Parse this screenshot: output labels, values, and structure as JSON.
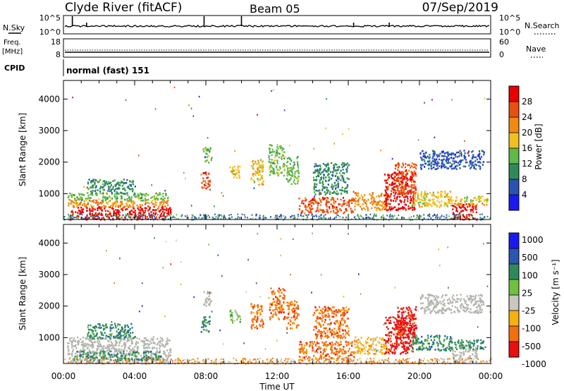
{
  "header": {
    "station": "Clyde River (fitACF)",
    "beam": "Beam 05",
    "date": "07/Sep/2019"
  },
  "panels": {
    "nsky": {
      "left_label": "N.Sky",
      "right_label": "N.Search",
      "left_ticks": [
        "10^5",
        "10^0"
      ],
      "right_ticks": [
        "10^5",
        "10^0"
      ]
    },
    "freq": {
      "left_label_1": "Freq.",
      "left_label_2": "[MHz]",
      "right_label": "Nave",
      "left_ticks": [
        "18",
        "8"
      ],
      "right_ticks": [
        "60",
        "0"
      ]
    },
    "cpid": {
      "label": "CPID",
      "text": "normal (fast) 151"
    }
  },
  "colors": {
    "power": [
      "#1a1af0",
      "#2a52b0",
      "#2f8a5a",
      "#60b848",
      "#f0c020",
      "#f08a10",
      "#e85010",
      "#e80000"
    ],
    "velocity": [
      "#e81010",
      "#f07010",
      "#f8b010",
      "#c8c8c0",
      "#70c040",
      "#2e8a5a",
      "#2a56b0",
      "#1a1af0"
    ],
    "ground": "#b4b4ae"
  },
  "chart_data": [
    {
      "type": "heatmap",
      "name": "power",
      "ylabel": "Slant Range [km]",
      "xlabel": "Time UT",
      "x_ticks": [
        "00:00",
        "04:00",
        "08:00",
        "12:00",
        "16:00",
        "20:00",
        "00:00"
      ],
      "y_ticks": [
        "1000",
        "2000",
        "3000",
        "4000"
      ],
      "xlim": [
        0,
        24
      ],
      "ylim": [
        180,
        4590
      ],
      "colorbar_label": "Power [dB]",
      "colorbar_ticks": [
        "4",
        "8",
        "12",
        "16",
        "20",
        "24",
        "28"
      ],
      "colorbar_range": [
        0,
        32
      ],
      "blobs": [
        {
          "t0": 0.3,
          "t1": 6.0,
          "r0": 200,
          "r1": 620,
          "c": 7
        },
        {
          "t0": 0.2,
          "t1": 6.0,
          "r0": 600,
          "r1": 820,
          "c": 5
        },
        {
          "t0": 0.2,
          "t1": 5.9,
          "r0": 800,
          "r1": 1050,
          "c": 3
        },
        {
          "t0": 1.3,
          "t1": 4.0,
          "r0": 1000,
          "r1": 1480,
          "c": 2
        },
        {
          "t0": 7.7,
          "t1": 8.2,
          "r0": 1150,
          "r1": 1700,
          "c": 6
        },
        {
          "t0": 7.8,
          "t1": 8.3,
          "r0": 2000,
          "r1": 2500,
          "c": 3
        },
        {
          "t0": 9.3,
          "t1": 9.9,
          "r0": 1500,
          "r1": 1900,
          "c": 4
        },
        {
          "t0": 10.5,
          "t1": 11.2,
          "r0": 1300,
          "r1": 2100,
          "c": 4
        },
        {
          "t0": 11.5,
          "t1": 12.4,
          "r0": 1600,
          "r1": 2600,
          "c": 3
        },
        {
          "t0": 12.5,
          "t1": 13.2,
          "r0": 1300,
          "r1": 2200,
          "c": 3
        },
        {
          "t0": 13.2,
          "t1": 16.3,
          "r0": 400,
          "r1": 900,
          "c": 6
        },
        {
          "t0": 14.0,
          "t1": 16.0,
          "r0": 1000,
          "r1": 2000,
          "c": 2
        },
        {
          "t0": 16.3,
          "t1": 18.2,
          "r0": 500,
          "r1": 1050,
          "c": 5
        },
        {
          "t0": 18.0,
          "t1": 19.7,
          "r0": 500,
          "r1": 1700,
          "c": 7
        },
        {
          "t0": 18.6,
          "t1": 19.8,
          "r0": 1000,
          "r1": 2000,
          "c": 6
        },
        {
          "t0": 19.5,
          "t1": 21.8,
          "r0": 600,
          "r1": 1100,
          "c": 4
        },
        {
          "t0": 20.0,
          "t1": 23.6,
          "r0": 1800,
          "r1": 2400,
          "c": 1
        },
        {
          "t0": 21.8,
          "t1": 23.2,
          "r0": 200,
          "r1": 700,
          "c": 7
        },
        {
          "t0": 21.6,
          "t1": 23.8,
          "r0": 650,
          "r1": 950,
          "c": 4
        }
      ]
    },
    {
      "type": "heatmap",
      "name": "velocity",
      "ylabel": "Slant Range [km]",
      "xlabel": "Time UT",
      "x_ticks": [
        "00:00",
        "04:00",
        "08:00",
        "12:00",
        "16:00",
        "20:00",
        "00:00"
      ],
      "y_ticks": [
        "1000",
        "2000",
        "3000",
        "4000"
      ],
      "xlim": [
        0,
        24
      ],
      "ylim": [
        180,
        4590
      ],
      "colorbar_label": "Velocity [m s⁻¹]",
      "colorbar_ticks": [
        "-1000",
        "-500",
        "-100",
        "-25",
        "25",
        "100",
        "500",
        "1000"
      ],
      "blobs": [
        {
          "t0": 0.2,
          "t1": 6.0,
          "r0": 200,
          "r1": 1050,
          "c": "g"
        },
        {
          "t0": 0.5,
          "t1": 5.5,
          "r0": 300,
          "r1": 600,
          "c": 5
        },
        {
          "t0": 1.3,
          "t1": 4.0,
          "r0": 1000,
          "r1": 1480,
          "c": 5
        },
        {
          "t0": 7.7,
          "t1": 8.2,
          "r0": 1150,
          "r1": 1700,
          "c": 5
        },
        {
          "t0": 7.8,
          "t1": 8.3,
          "r0": 2000,
          "r1": 2500,
          "c": "g"
        },
        {
          "t0": 9.3,
          "t1": 9.9,
          "r0": 1500,
          "r1": 1900,
          "c": 4
        },
        {
          "t0": 10.5,
          "t1": 11.2,
          "r0": 1300,
          "r1": 2100,
          "c": 1
        },
        {
          "t0": 11.5,
          "t1": 12.4,
          "r0": 1600,
          "r1": 2600,
          "c": 1
        },
        {
          "t0": 12.5,
          "t1": 13.2,
          "r0": 1300,
          "r1": 2200,
          "c": 1
        },
        {
          "t0": 13.2,
          "t1": 16.3,
          "r0": 300,
          "r1": 900,
          "c": 1
        },
        {
          "t0": 14.0,
          "t1": 16.0,
          "r0": 1000,
          "r1": 2000,
          "c": 1
        },
        {
          "t0": 16.3,
          "t1": 18.2,
          "r0": 500,
          "r1": 1050,
          "c": 2
        },
        {
          "t0": 18.0,
          "t1": 19.7,
          "r0": 500,
          "r1": 1700,
          "c": 0
        },
        {
          "t0": 18.6,
          "t1": 19.8,
          "r0": 1000,
          "r1": 2000,
          "c": 0
        },
        {
          "t0": 19.5,
          "t1": 21.8,
          "r0": 600,
          "r1": 1100,
          "c": 5
        },
        {
          "t0": 20.0,
          "t1": 23.6,
          "r0": 1800,
          "r1": 2400,
          "c": "g"
        },
        {
          "t0": 21.8,
          "t1": 23.2,
          "r0": 200,
          "r1": 700,
          "c": "g"
        },
        {
          "t0": 21.6,
          "t1": 23.8,
          "r0": 650,
          "r1": 950,
          "c": 5
        }
      ]
    }
  ]
}
